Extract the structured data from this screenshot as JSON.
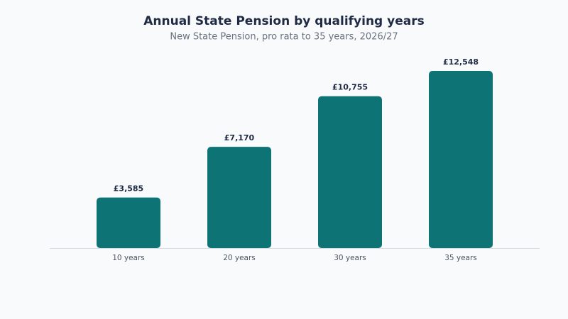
{
  "chart_data": {
    "type": "bar",
    "title": "Annual State Pension by qualifying years",
    "subtitle": "New State Pension, pro rata to 35 years, 2026/27",
    "categories": [
      "10 years",
      "20 years",
      "30 years",
      "35 years"
    ],
    "values": [
      3585,
      7170,
      10755,
      12548
    ],
    "value_labels": [
      "£3,585",
      "£7,170",
      "£10,755",
      "£12,548"
    ],
    "color": "#0e7374"
  }
}
